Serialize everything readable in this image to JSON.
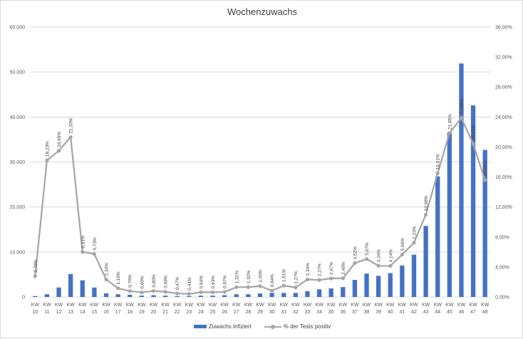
{
  "chart_data": {
    "type": "bar",
    "title": "Wochenzuwachs",
    "categories": [
      "KW 10",
      "KW 11",
      "KW 12",
      "KW 13",
      "KW 14",
      "KW 15",
      "KW 16",
      "KW 17",
      "KW 18",
      "KW 19",
      "KW 20",
      "KW 21",
      "KW 22",
      "KW 23",
      "KW 24",
      "KW 25",
      "KW 26",
      "KW 27",
      "KW 28",
      "KW 29",
      "KW 30",
      "KW 31",
      "KW 32",
      "KW 33",
      "KW 34",
      "KW 35",
      "KW 36",
      "KW 37",
      "KW 38",
      "KW 39",
      "KW 40",
      "KW 41",
      "KW 42",
      "KW 43",
      "KW 44",
      "KW 45",
      "KW 46",
      "KW 47",
      "KW 48"
    ],
    "series": [
      {
        "name": "Zuwachs Infiziert",
        "type": "bar",
        "axis": "left",
        "color": "#4472c4",
        "values": [
          200,
          600,
          2100,
          5100,
          3700,
          2100,
          800,
          600,
          500,
          300,
          400,
          300,
          200,
          200,
          300,
          300,
          400,
          600,
          600,
          800,
          900,
          900,
          900,
          1300,
          1700,
          1900,
          2200,
          3800,
          5200,
          4700,
          5300,
          7000,
          9400,
          15800,
          26800,
          36600,
          51900,
          42600,
          32700
        ]
      },
      {
        "name": "% der Tests positiv",
        "type": "line",
        "axis": "right",
        "color": "#a5a5a5",
        "values": [
          2.78,
          18.23,
          19.49,
          21.33,
          6.01,
          5.73,
          2.34,
          1.16,
          0.79,
          0.6,
          0.8,
          0.69,
          0.47,
          0.41,
          0.64,
          0.63,
          0.67,
          1.31,
          1.32,
          1.45,
          0.84,
          1.51,
          1.27,
          2.34,
          2.27,
          2.47,
          2.49,
          4.52,
          5.07,
          4.16,
          4.14,
          5.66,
          7.23,
          10.98,
          16.51,
          21.85,
          23.89,
          20.41,
          15.59
        ],
        "labels": [
          "2,78%",
          "18,23%",
          "19,49%",
          "21,33%",
          "6,01%",
          "5,73%",
          "2,34%",
          "1,16%",
          "0,79%",
          "0,60%",
          "0,80%",
          "0,69%",
          "0,47%",
          "0,41%",
          "0,64%",
          "0,63%",
          "0,67%",
          "1,31%",
          "1,32%",
          "1,45%",
          "0,84%",
          "1,51%",
          "1,27%",
          "2,34%",
          "2,27%",
          "2,47%",
          "2,49%",
          "4,52%",
          "5,07%",
          "4,16%",
          "4,14%",
          "5,66%",
          "7,23%",
          "10,98%",
          "16,51%",
          "21,85%",
          "23,89%",
          "20,41%",
          "15,59%"
        ]
      }
    ],
    "y_left": {
      "range": [
        0,
        60000
      ],
      "ticks": [
        0,
        10000,
        20000,
        30000,
        40000,
        50000,
        60000
      ],
      "tick_labels": [
        "0",
        "10.000",
        "20.000",
        "30.000",
        "40.000",
        "50.000",
        "60.000"
      ]
    },
    "y_right": {
      "range": [
        0,
        36
      ],
      "ticks": [
        0,
        4,
        8,
        12,
        16,
        20,
        24,
        28,
        32,
        36
      ],
      "tick_labels": [
        "0,00%",
        "4,00%",
        "8,00%",
        "12,00%",
        "16,00%",
        "20,00%",
        "24,00%",
        "28,00%",
        "32,00%",
        "36,00%"
      ]
    },
    "grid": true,
    "legend_position": "bottom"
  }
}
